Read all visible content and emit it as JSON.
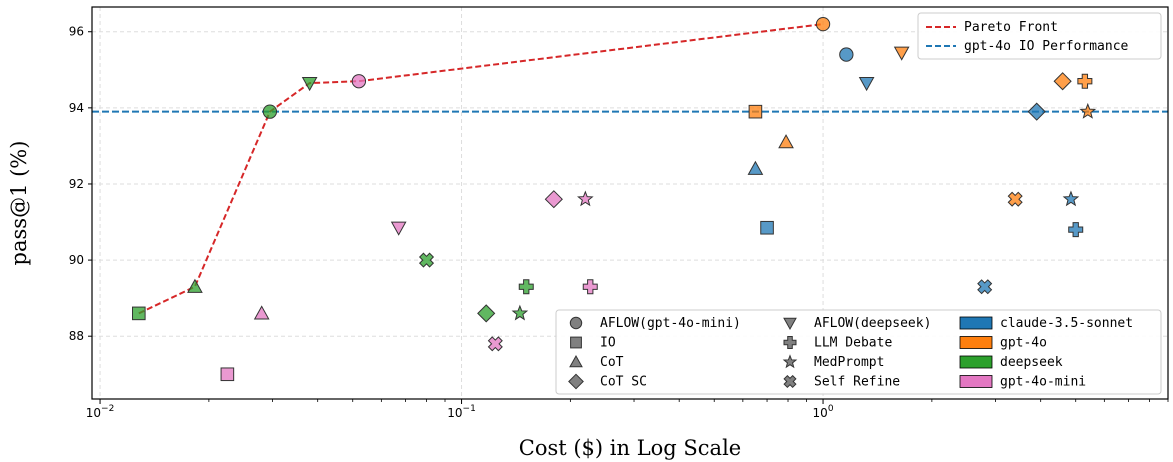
{
  "chart_data": {
    "type": "scatter",
    "title": "",
    "xlabel": "Cost ($) in Log Scale",
    "ylabel": "pass@1 (%)",
    "x_scale": "log",
    "xlim": [
      0.0095,
      9.0
    ],
    "ylim": [
      86.35,
      96.65
    ],
    "x_ticks": [
      {
        "value": 0.01,
        "base": "10",
        "exp": "−2"
      },
      {
        "value": 0.1,
        "base": "10",
        "exp": "−1"
      },
      {
        "value": 1,
        "base": "10",
        "exp": "0"
      }
    ],
    "y_ticks": [
      88,
      90,
      92,
      94,
      96
    ],
    "grid": true,
    "colors": {
      "claude-3.5-sonnet": "#1f77b4",
      "gpt-4o": "#ff7f0e",
      "deepseek": "#2ca02c",
      "gpt-4o-mini": "#e377c2"
    },
    "series": [
      {
        "model": "gpt-4o-mini",
        "method": "AFLOW(gpt-4o-mini)",
        "marker": "circle",
        "x": 0.052,
        "y": 94.7
      },
      {
        "model": "gpt-4o-mini",
        "method": "IO",
        "marker": "square",
        "x": 0.0225,
        "y": 87.0
      },
      {
        "model": "gpt-4o-mini",
        "method": "CoT",
        "marker": "triangle-up",
        "x": 0.028,
        "y": 88.6
      },
      {
        "model": "gpt-4o-mini",
        "method": "CoT SC",
        "marker": "diamond",
        "x": 0.18,
        "y": 91.6
      },
      {
        "model": "gpt-4o-mini",
        "method": "AFLOW(deepseek)",
        "marker": "triangle-down",
        "x": 0.067,
        "y": 90.85
      },
      {
        "model": "gpt-4o-mini",
        "method": "LLM Debate",
        "marker": "plus",
        "x": 0.227,
        "y": 89.3
      },
      {
        "model": "gpt-4o-mini",
        "method": "MedPrompt",
        "marker": "star",
        "x": 0.22,
        "y": 91.6
      },
      {
        "model": "gpt-4o-mini",
        "method": "Self Refine",
        "marker": "x",
        "x": 0.124,
        "y": 87.8
      },
      {
        "model": "deepseek",
        "method": "AFLOW(gpt-4o-mini)",
        "marker": "circle",
        "x": 0.0295,
        "y": 93.9
      },
      {
        "model": "deepseek",
        "method": "IO",
        "marker": "square",
        "x": 0.0128,
        "y": 88.6
      },
      {
        "model": "deepseek",
        "method": "CoT",
        "marker": "triangle-up",
        "x": 0.0183,
        "y": 89.3
      },
      {
        "model": "deepseek",
        "method": "CoT SC",
        "marker": "diamond",
        "x": 0.117,
        "y": 88.6
      },
      {
        "model": "deepseek",
        "method": "AFLOW(deepseek)",
        "marker": "triangle-down",
        "x": 0.038,
        "y": 94.65
      },
      {
        "model": "deepseek",
        "method": "LLM Debate",
        "marker": "plus",
        "x": 0.151,
        "y": 89.3
      },
      {
        "model": "deepseek",
        "method": "MedPrompt",
        "marker": "star",
        "x": 0.145,
        "y": 88.6
      },
      {
        "model": "deepseek",
        "method": "Self Refine",
        "marker": "x",
        "x": 0.08,
        "y": 90.0
      },
      {
        "model": "claude-3.5-sonnet",
        "method": "AFLOW(gpt-4o-mini)",
        "marker": "circle",
        "x": 1.16,
        "y": 95.4
      },
      {
        "model": "claude-3.5-sonnet",
        "method": "IO",
        "marker": "square",
        "x": 0.7,
        "y": 90.85
      },
      {
        "model": "claude-3.5-sonnet",
        "method": "CoT",
        "marker": "triangle-up",
        "x": 0.65,
        "y": 92.4
      },
      {
        "model": "claude-3.5-sonnet",
        "method": "CoT SC",
        "marker": "diamond",
        "x": 3.9,
        "y": 93.9
      },
      {
        "model": "claude-3.5-sonnet",
        "method": "AFLOW(deepseek)",
        "marker": "triangle-down",
        "x": 1.32,
        "y": 94.65
      },
      {
        "model": "claude-3.5-sonnet",
        "method": "LLM Debate",
        "marker": "plus",
        "x": 5.0,
        "y": 90.8
      },
      {
        "model": "claude-3.5-sonnet",
        "method": "MedPrompt",
        "marker": "star",
        "x": 4.85,
        "y": 91.6
      },
      {
        "model": "claude-3.5-sonnet",
        "method": "Self Refine",
        "marker": "x",
        "x": 2.8,
        "y": 89.3
      },
      {
        "model": "gpt-4o",
        "method": "AFLOW(gpt-4o-mini)",
        "marker": "circle",
        "x": 1.0,
        "y": 96.2
      },
      {
        "model": "gpt-4o",
        "method": "IO",
        "marker": "square",
        "x": 0.65,
        "y": 93.9
      },
      {
        "model": "gpt-4o",
        "method": "CoT",
        "marker": "triangle-up",
        "x": 0.79,
        "y": 93.1
      },
      {
        "model": "gpt-4o",
        "method": "CoT SC",
        "marker": "diamond",
        "x": 4.6,
        "y": 94.7
      },
      {
        "model": "gpt-4o",
        "method": "AFLOW(deepseek)",
        "marker": "triangle-down",
        "x": 1.65,
        "y": 95.45
      },
      {
        "model": "gpt-4o",
        "method": "LLM Debate",
        "marker": "plus",
        "x": 5.3,
        "y": 94.7
      },
      {
        "model": "gpt-4o",
        "method": "MedPrompt",
        "marker": "star",
        "x": 5.4,
        "y": 93.9
      },
      {
        "model": "gpt-4o",
        "method": "Self Refine",
        "marker": "x",
        "x": 3.4,
        "y": 91.6
      }
    ],
    "pareto_front": {
      "label": "Pareto Front",
      "color": "#d62728",
      "points": [
        [
          0.0128,
          88.6
        ],
        [
          0.0183,
          89.3
        ],
        [
          0.0295,
          93.9
        ],
        [
          0.038,
          94.65
        ],
        [
          0.052,
          94.7
        ],
        [
          1.0,
          96.2
        ]
      ]
    },
    "reference_line": {
      "label": "gpt-4o IO Performance",
      "color": "#1f77b4",
      "y": 93.9
    },
    "legend_lines": [
      {
        "label": "Pareto Front",
        "color": "#d62728"
      },
      {
        "label": "gpt-4o IO Performance",
        "color": "#1f77b4"
      }
    ],
    "legend_markers": [
      {
        "label": "AFLOW(gpt-4o-mini)",
        "marker": "circle"
      },
      {
        "label": "IO",
        "marker": "square"
      },
      {
        "label": "CoT",
        "marker": "triangle-up"
      },
      {
        "label": "CoT SC",
        "marker": "diamond"
      },
      {
        "label": "AFLOW(deepseek)",
        "marker": "triangle-down"
      },
      {
        "label": "LLM Debate",
        "marker": "plus"
      },
      {
        "label": "MedPrompt",
        "marker": "star"
      },
      {
        "label": "Self Refine",
        "marker": "x"
      }
    ],
    "legend_models": [
      {
        "label": "claude-3.5-sonnet",
        "color": "#1f77b4"
      },
      {
        "label": "gpt-4o",
        "color": "#ff7f0e"
      },
      {
        "label": "deepseek",
        "color": "#2ca02c"
      },
      {
        "label": "gpt-4o-mini",
        "color": "#e377c2"
      }
    ],
    "line_legend_position": "top-right",
    "marker_legend_position": "bottom-right"
  }
}
